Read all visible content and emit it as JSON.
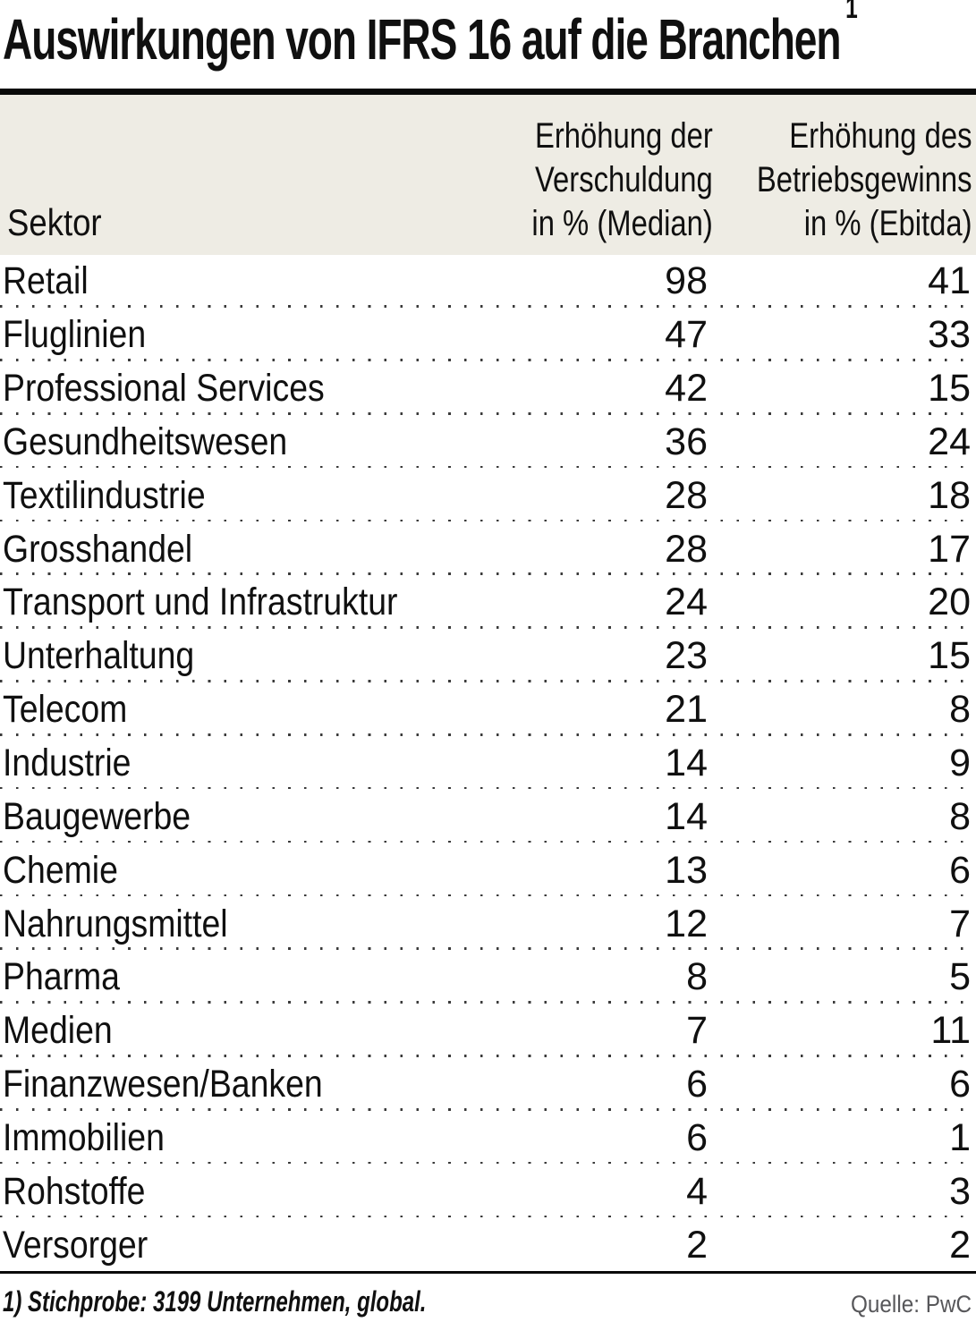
{
  "title": {
    "text": "Auswirkungen von IFRS 16 auf die Branchen",
    "footnote_marker": "1"
  },
  "table": {
    "header": {
      "sector_label": "Sektor",
      "col1_lines": [
        "Erhöhung der",
        "Verschuldung",
        "in % (Median)"
      ],
      "col2_lines": [
        "Erhöhung des",
        "Betriebsgewinns",
        "in % (Ebitda)"
      ]
    },
    "rows": [
      {
        "sector": "Retail",
        "debt": "98",
        "ebitda": "41"
      },
      {
        "sector": "Fluglinien",
        "debt": "47",
        "ebitda": "33"
      },
      {
        "sector": "Professional Services",
        "debt": "42",
        "ebitda": "15"
      },
      {
        "sector": "Gesundheitswesen",
        "debt": "36",
        "ebitda": "24"
      },
      {
        "sector": "Textilindustrie",
        "debt": "28",
        "ebitda": "18"
      },
      {
        "sector": "Grosshandel",
        "debt": "28",
        "ebitda": "17"
      },
      {
        "sector": "Transport und Infrastruktur",
        "debt": "24",
        "ebitda": "20"
      },
      {
        "sector": "Unterhaltung",
        "debt": "23",
        "ebitda": "15"
      },
      {
        "sector": "Telecom",
        "debt": "21",
        "ebitda": "8"
      },
      {
        "sector": "Industrie",
        "debt": "14",
        "ebitda": "9"
      },
      {
        "sector": "Baugewerbe",
        "debt": "14",
        "ebitda": "8"
      },
      {
        "sector": "Chemie",
        "debt": "13",
        "ebitda": "6"
      },
      {
        "sector": "Nahrungsmittel",
        "debt": "12",
        "ebitda": "7"
      },
      {
        "sector": "Pharma",
        "debt": "8",
        "ebitda": "5"
      },
      {
        "sector": "Medien",
        "debt": "7",
        "ebitda": "11"
      },
      {
        "sector": "Finanzwesen/Banken",
        "debt": "6",
        "ebitda": "6"
      },
      {
        "sector": "Immobilien",
        "debt": "6",
        "ebitda": "1"
      },
      {
        "sector": "Rohstoffe",
        "debt": "4",
        "ebitda": "3"
      },
      {
        "sector": "Versorger",
        "debt": "2",
        "ebitda": "2"
      }
    ]
  },
  "footer": {
    "footnote": "1) Stichprobe: 3199 Unternehmen, global.",
    "source": "Quelle: PwC"
  },
  "colors": {
    "header_bg": "#eeece4",
    "rule": "#0a0a0a",
    "dot_separator": "#3a3a3a",
    "source_text": "#57575a"
  },
  "chart_data": {
    "type": "table",
    "title": "Auswirkungen von IFRS 16 auf die Branchen",
    "footnote": "1) Stichprobe: 3199 Unternehmen, global.",
    "source": "Quelle: PwC",
    "columns": [
      "Sektor",
      "Erhöhung der Verschuldung in % (Median)",
      "Erhöhung des Betriebsgewinns in % (Ebitda)"
    ],
    "categories": [
      "Retail",
      "Fluglinien",
      "Professional Services",
      "Gesundheitswesen",
      "Textilindustrie",
      "Grosshandel",
      "Transport und Infrastruktur",
      "Unterhaltung",
      "Telecom",
      "Industrie",
      "Baugewerbe",
      "Chemie",
      "Nahrungsmittel",
      "Pharma",
      "Medien",
      "Finanzwesen/Banken",
      "Immobilien",
      "Rohstoffe",
      "Versorger"
    ],
    "series": [
      {
        "name": "Erhöhung der Verschuldung in % (Median)",
        "values": [
          98,
          47,
          42,
          36,
          28,
          28,
          24,
          23,
          21,
          14,
          14,
          13,
          12,
          8,
          7,
          6,
          6,
          4,
          2
        ]
      },
      {
        "name": "Erhöhung des Betriebsgewinns in % (Ebitda)",
        "values": [
          41,
          33,
          15,
          24,
          18,
          17,
          20,
          15,
          8,
          9,
          8,
          6,
          7,
          5,
          11,
          6,
          1,
          3,
          2
        ]
      }
    ]
  }
}
